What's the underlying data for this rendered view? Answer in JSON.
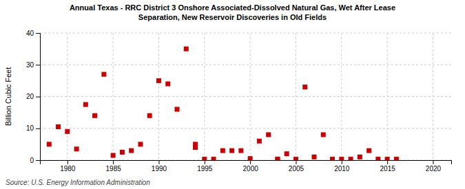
{
  "chart_data": {
    "type": "scatter",
    "title": "Annual Texas - RRC District 3 Onshore Associated-Dissolved Natural Gas, Wet After Lease\nSeparation, New Reservoir Discoveries in Old Fields",
    "ylabel": "Billion Cubic Feet",
    "annotations": [
      "Source: U.S. Energy Information Administration"
    ],
    "x": [
      1978,
      1979,
      1980,
      1981,
      1982,
      1983,
      1984,
      1985,
      1986,
      1987,
      1988,
      1989,
      1990,
      1991,
      1992,
      1993,
      1994,
      1994,
      1995,
      1996,
      1997,
      1998,
      1999,
      2000,
      2001,
      2002,
      2003,
      2003,
      2004,
      2005,
      2006,
      2007,
      2008,
      2009,
      2010,
      2011,
      2012,
      2013,
      2014,
      2015,
      2016
    ],
    "values": [
      5.0,
      10.5,
      9.0,
      3.5,
      17.5,
      14.0,
      27.0,
      1.5,
      2.5,
      3.0,
      5.0,
      14.0,
      25.0,
      24.0,
      16.0,
      35.0,
      4.0,
      5.0,
      0.3,
      0.3,
      3.0,
      3.0,
      3.0,
      0.5,
      6.0,
      8.0,
      0.3,
      0.3,
      2.0,
      0.3,
      23.0,
      1.0,
      8.0,
      0.3,
      0.3,
      0.3,
      1.0,
      3.0,
      0.3,
      0.3,
      0.3
    ],
    "color": "#cc0000",
    "marker": "square",
    "xlim": [
      1977,
      2022
    ],
    "ylim": [
      0,
      40
    ],
    "xticks": [
      1980,
      1985,
      1990,
      1995,
      2000,
      2005,
      2010,
      2015,
      2020
    ],
    "yticks": [
      0,
      10,
      20,
      30,
      40
    ],
    "grid": true
  }
}
